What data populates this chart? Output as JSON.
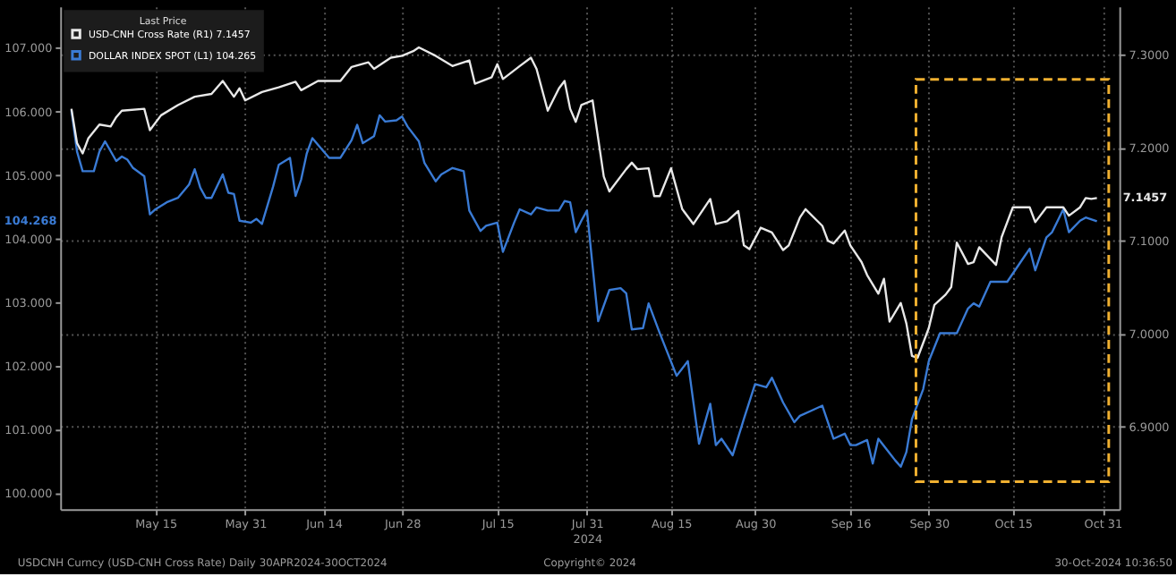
{
  "chart_data": {
    "type": "line",
    "legend_title": "Last Price",
    "legend": "top left",
    "grid": true,
    "xlim": [
      "2024-04-28",
      "2024-11-03"
    ],
    "xticks": [
      {
        "value": "2024-05-15",
        "label": "May 15"
      },
      {
        "value": "2024-05-31",
        "label": "May 31"
      },
      {
        "value": "2024-06-14",
        "label": "Jun 14"
      },
      {
        "value": "2024-06-28",
        "label": "Jun 28"
      },
      {
        "value": "2024-07-15",
        "label": "Jul 15"
      },
      {
        "value": "2024-07-31",
        "label": "Jul 31\n2024"
      },
      {
        "value": "2024-08-15",
        "label": "Aug 15"
      },
      {
        "value": "2024-08-30",
        "label": "Aug 30"
      },
      {
        "value": "2024-09-16",
        "label": "Sep 16"
      },
      {
        "value": "2024-09-30",
        "label": "Sep 30"
      },
      {
        "value": "2024-10-15",
        "label": "Oct 15"
      },
      {
        "value": "2024-10-31",
        "label": "Oct 31"
      }
    ],
    "ylim": [
      99.74,
      107.65
    ],
    "yticks": [
      {
        "value": 100,
        "label": "100.000"
      },
      {
        "value": 101,
        "label": "101.000"
      },
      {
        "value": 102,
        "label": "102.000"
      },
      {
        "value": 103,
        "label": "103.000"
      },
      {
        "value": 104,
        "label": "104.000"
      },
      {
        "value": 105,
        "label": "105.000"
      },
      {
        "value": 106,
        "label": "106.000"
      },
      {
        "value": 107,
        "label": "107.000"
      }
    ],
    "y2lim": [
      6.811,
      7.352
    ],
    "y2ticks": [
      {
        "value": 6.9,
        "label": "6.9000"
      },
      {
        "value": 7,
        "label": "7.0000"
      },
      {
        "value": 7.1,
        "label": "7.1000"
      },
      {
        "value": 7.2,
        "label": "7.2000"
      },
      {
        "value": 7.3,
        "label": "7.3000"
      }
    ],
    "series": [
      {
        "name": "USD-CNH Cross Rate (R1)  7.1457",
        "color": "#e8e8e8",
        "axis": "y2",
        "x": [
          "2024-04-30",
          "2024-05-01",
          "2024-05-02",
          "2024-05-03",
          "2024-05-05",
          "2024-05-07",
          "2024-05-08",
          "2024-05-09",
          "2024-05-13",
          "2024-05-14",
          "2024-05-16",
          "2024-05-19",
          "2024-05-22",
          "2024-05-25",
          "2024-05-27",
          "2024-05-29",
          "2024-05-30",
          "2024-05-31",
          "2024-06-03",
          "2024-06-06",
          "2024-06-09",
          "2024-06-10",
          "2024-06-13",
          "2024-06-17",
          "2024-06-19",
          "2024-06-22",
          "2024-06-23",
          "2024-06-26",
          "2024-06-28",
          "2024-06-30",
          "2024-07-01",
          "2024-07-04",
          "2024-07-07",
          "2024-07-10",
          "2024-07-11",
          "2024-07-14",
          "2024-07-15",
          "2024-07-16",
          "2024-07-19",
          "2024-07-21",
          "2024-07-22",
          "2024-07-24",
          "2024-07-26",
          "2024-07-27",
          "2024-07-28",
          "2024-07-29",
          "2024-07-30",
          "2024-08-01",
          "2024-08-03",
          "2024-08-04",
          "2024-08-07",
          "2024-08-08",
          "2024-08-09",
          "2024-08-11",
          "2024-08-12",
          "2024-08-13",
          "2024-08-15",
          "2024-08-17",
          "2024-08-19",
          "2024-08-22",
          "2024-08-23",
          "2024-08-25",
          "2024-08-27",
          "2024-08-28",
          "2024-08-29",
          "2024-08-31",
          "2024-09-02",
          "2024-09-04",
          "2024-09-05",
          "2024-09-07",
          "2024-09-08",
          "2024-09-11",
          "2024-09-12",
          "2024-09-13",
          "2024-09-15",
          "2024-09-16",
          "2024-09-18",
          "2024-09-19",
          "2024-09-21",
          "2024-09-22",
          "2024-09-23",
          "2024-09-25",
          "2024-09-26",
          "2024-09-27",
          "2024-09-28",
          "2024-09-30",
          "2024-10-01",
          "2024-10-03",
          "2024-10-04",
          "2024-10-05",
          "2024-10-07",
          "2024-10-08",
          "2024-10-09",
          "2024-10-12",
          "2024-10-13",
          "2024-10-15",
          "2024-10-16",
          "2024-10-18",
          "2024-10-19",
          "2024-10-21",
          "2024-10-24",
          "2024-10-25",
          "2024-10-27",
          "2024-10-28",
          "2024-10-29",
          "2024-10-30"
        ],
        "values": [
          7.242,
          7.205,
          7.194,
          7.21,
          7.225,
          7.223,
          7.233,
          7.24,
          7.242,
          7.219,
          7.235,
          7.246,
          7.255,
          7.258,
          7.272,
          7.255,
          7.264,
          7.251,
          7.26,
          7.265,
          7.271,
          7.262,
          7.272,
          7.272,
          7.287,
          7.292,
          7.285,
          7.297,
          7.299,
          7.304,
          7.308,
          7.299,
          7.288,
          7.294,
          7.269,
          7.276,
          7.29,
          7.274,
          7.288,
          7.297,
          7.285,
          7.24,
          7.264,
          7.272,
          7.242,
          7.228,
          7.246,
          7.251,
          7.169,
          7.153,
          7.177,
          7.184,
          7.177,
          7.178,
          7.148,
          7.148,
          7.178,
          7.134,
          7.118,
          7.145,
          7.118,
          7.121,
          7.132,
          7.095,
          7.091,
          7.114,
          7.109,
          7.09,
          7.095,
          7.125,
          7.134,
          7.116,
          7.1,
          7.097,
          7.111,
          7.095,
          7.077,
          7.063,
          7.043,
          7.059,
          7.013,
          7.033,
          7.011,
          6.976,
          6.974,
          7.006,
          7.031,
          7.042,
          7.05,
          7.098,
          7.075,
          7.077,
          7.093,
          7.074,
          7.104,
          7.136,
          7.136,
          7.136,
          7.12,
          7.136,
          7.136,
          7.127,
          7.136,
          7.146,
          7.145,
          7.146
        ]
      },
      {
        "name": "DOLLAR INDEX SPOT (L1) 104.265",
        "color": "#3a7bd5",
        "axis": "y",
        "x": [
          "2024-04-30",
          "2024-05-01",
          "2024-05-02",
          "2024-05-04",
          "2024-05-05",
          "2024-05-06",
          "2024-05-08",
          "2024-05-09",
          "2024-05-10",
          "2024-05-11",
          "2024-05-13",
          "2024-05-14",
          "2024-05-15",
          "2024-05-17",
          "2024-05-19",
          "2024-05-21",
          "2024-05-22",
          "2024-05-23",
          "2024-05-24",
          "2024-05-25",
          "2024-05-27",
          "2024-05-28",
          "2024-05-29",
          "2024-05-30",
          "2024-06-01",
          "2024-06-02",
          "2024-06-03",
          "2024-06-05",
          "2024-06-06",
          "2024-06-08",
          "2024-06-09",
          "2024-06-10",
          "2024-06-11",
          "2024-06-12",
          "2024-06-14",
          "2024-06-15",
          "2024-06-17",
          "2024-06-19",
          "2024-06-20",
          "2024-06-21",
          "2024-06-23",
          "2024-06-24",
          "2024-06-25",
          "2024-06-27",
          "2024-06-28",
          "2024-06-29",
          "2024-07-01",
          "2024-07-02",
          "2024-07-04",
          "2024-07-05",
          "2024-07-07",
          "2024-07-09",
          "2024-07-10",
          "2024-07-12",
          "2024-07-13",
          "2024-07-15",
          "2024-07-16",
          "2024-07-18",
          "2024-07-19",
          "2024-07-21",
          "2024-07-22",
          "2024-07-24",
          "2024-07-26",
          "2024-07-27",
          "2024-07-28",
          "2024-07-29",
          "2024-07-30",
          "2024-07-31",
          "2024-08-02",
          "2024-08-04",
          "2024-08-06",
          "2024-08-07",
          "2024-08-08",
          "2024-08-10",
          "2024-08-11",
          "2024-08-13",
          "2024-08-16",
          "2024-08-18",
          "2024-08-20",
          "2024-08-22",
          "2024-08-23",
          "2024-08-24",
          "2024-08-26",
          "2024-08-28",
          "2024-08-30",
          "2024-09-01",
          "2024-09-02",
          "2024-09-04",
          "2024-09-06",
          "2024-09-07",
          "2024-09-09",
          "2024-09-11",
          "2024-09-13",
          "2024-09-15",
          "2024-09-16",
          "2024-09-17",
          "2024-09-19",
          "2024-09-20",
          "2024-09-21",
          "2024-09-24",
          "2024-09-25",
          "2024-09-26",
          "2024-09-27",
          "2024-09-29",
          "2024-09-30",
          "2024-10-02",
          "2024-10-04",
          "2024-10-05",
          "2024-10-07",
          "2024-10-08",
          "2024-10-09",
          "2024-10-11",
          "2024-10-12",
          "2024-10-14",
          "2024-10-17",
          "2024-10-18",
          "2024-10-19",
          "2024-10-21",
          "2024-10-22",
          "2024-10-24",
          "2024-10-25",
          "2024-10-27",
          "2024-10-28",
          "2024-10-30"
        ],
        "values": [
          106.02,
          105.37,
          105.06,
          105.06,
          105.37,
          105.53,
          105.22,
          105.29,
          105.24,
          105.11,
          104.98,
          104.38,
          104.46,
          104.57,
          104.64,
          104.85,
          105.09,
          104.8,
          104.64,
          104.64,
          105.01,
          104.72,
          104.7,
          104.28,
          104.25,
          104.31,
          104.23,
          104.82,
          105.16,
          105.27,
          104.67,
          104.93,
          105.34,
          105.58,
          105.37,
          105.27,
          105.27,
          105.55,
          105.79,
          105.5,
          105.61,
          105.94,
          105.84,
          105.86,
          105.92,
          105.76,
          105.53,
          105.19,
          104.9,
          105.01,
          105.11,
          105.06,
          104.44,
          104.12,
          104.2,
          104.25,
          103.79,
          104.25,
          104.46,
          104.38,
          104.49,
          104.44,
          104.44,
          104.59,
          104.57,
          104.1,
          104.28,
          104.44,
          102.7,
          103.19,
          103.22,
          103.14,
          102.57,
          102.59,
          102.98,
          102.51,
          101.84,
          102.07,
          100.77,
          101.4,
          100.75,
          100.85,
          100.59,
          101.16,
          101.71,
          101.66,
          101.81,
          101.42,
          101.11,
          101.21,
          101.29,
          101.37,
          100.85,
          100.93,
          100.75,
          100.75,
          100.83,
          100.46,
          100.85,
          100.51,
          100.41,
          100.64,
          101.16,
          101.63,
          102.07,
          102.51,
          102.51,
          102.51,
          102.9,
          102.98,
          102.93,
          103.32,
          103.32,
          103.32,
          103.71,
          103.84,
          103.5,
          104.02,
          104.1,
          104.46,
          104.1,
          104.28,
          104.33,
          104.27
        ]
      }
    ],
    "annotations": [
      "104.268",
      "7.1457",
      "USDCNH Curncy (USD-CNH Cross Rate)  Daily 30APR2024-30OCT2024",
      "Copyright© 2024",
      "30-Oct-2024 10:36:50"
    ]
  }
}
